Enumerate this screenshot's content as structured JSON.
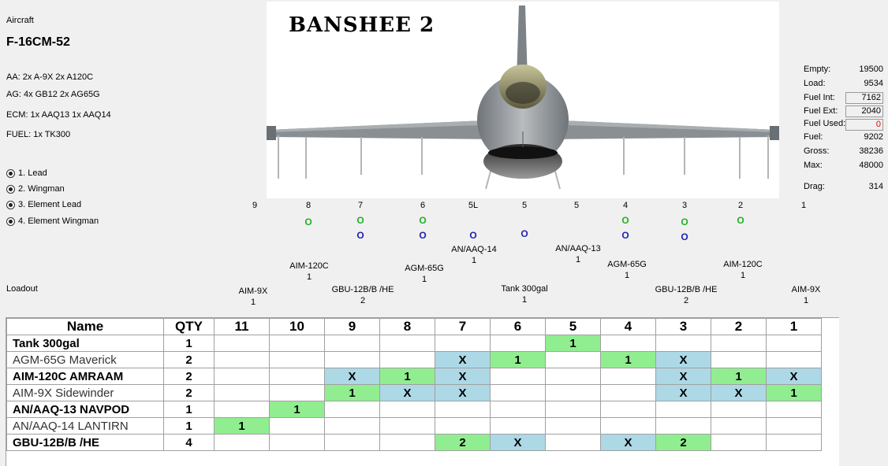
{
  "aircraft": {
    "caption": "Aircraft",
    "name": "F-16CM-52",
    "callsign": "BANSHEE 2"
  },
  "loadout_summary": {
    "aa": "AA: 2x A-9X 2x A120C",
    "ag": "AG: 4x GB12 2x AG65G",
    "ecm": "ECM: 1x AAQ13 1x AAQ14",
    "fuel": "FUEL: 1x TK300"
  },
  "roles": [
    {
      "label": "1. Lead",
      "selected": true
    },
    {
      "label": "2. Wingman",
      "selected": true
    },
    {
      "label": "3. Element Lead",
      "selected": true
    },
    {
      "label": "4. Element Wingman",
      "selected": true
    }
  ],
  "stats": {
    "empty_label": "Empty:",
    "empty": "19500",
    "load_label": "Load:",
    "load": "9534",
    "fuel_int_label": "Fuel Int:",
    "fuel_int": "7162",
    "fuel_ext_label": "Fuel Ext:",
    "fuel_ext": "2040",
    "fuel_used_label": "Fuel Used:",
    "fuel_used": "0",
    "fuel_label": "Fuel:",
    "fuel": "9202",
    "gross_label": "Gross:",
    "gross": "38236",
    "max_label": "Max:",
    "max": "48000",
    "drag_label": "Drag:",
    "drag": "314"
  },
  "stations": [
    "9",
    "8",
    "7",
    "6",
    "5L",
    "5",
    "5",
    "4",
    "3",
    "2",
    "1"
  ],
  "markers": {
    "green": "O",
    "blue": "O"
  },
  "loadout_caption": "Loadout",
  "loadout_labels": [
    {
      "name": "AIM-120C",
      "qty": "1"
    },
    {
      "name": "AGM-65G",
      "qty": "1"
    },
    {
      "name": "AN/AAQ-14",
      "qty": "1"
    },
    {
      "name": "AN/AAQ-13",
      "qty": "1"
    },
    {
      "name": "AGM-65G",
      "qty": "1"
    },
    {
      "name": "AIM-120C",
      "qty": "1"
    },
    {
      "name": "AIM-9X",
      "qty": "1"
    },
    {
      "name": "GBU-12B/B /HE",
      "qty": "2"
    },
    {
      "name": "Tank 300gal",
      "qty": "1"
    },
    {
      "name": "GBU-12B/B /HE",
      "qty": "2"
    },
    {
      "name": "AIM-9X",
      "qty": "1"
    }
  ],
  "table": {
    "headers": [
      "Name",
      "QTY",
      "11",
      "10",
      "9",
      "8",
      "7",
      "6",
      "5",
      "4",
      "3",
      "2",
      "1"
    ],
    "rows": [
      {
        "name": "Tank 300gal",
        "qty": "1",
        "cells": [
          "",
          "",
          "",
          "",
          "",
          "",
          "1",
          "",
          "",
          "",
          ""
        ]
      },
      {
        "name": "AGM-65G Maverick",
        "qty": "2",
        "cells": [
          "",
          "",
          "",
          "",
          "X",
          "1",
          "",
          "1",
          "X",
          "",
          ""
        ]
      },
      {
        "name": "AIM-120C AMRAAM",
        "qty": "2",
        "cells": [
          "",
          "",
          "X",
          "1",
          "X",
          "",
          "",
          "",
          "X",
          "1",
          "X"
        ]
      },
      {
        "name": "AIM-9X Sidewinder",
        "qty": "2",
        "cells": [
          "",
          "",
          "1",
          "X",
          "X",
          "",
          "",
          "",
          "X",
          "X",
          "1"
        ]
      },
      {
        "name": "AN/AAQ-13 NAVPOD",
        "qty": "1",
        "cells": [
          "",
          "1",
          "",
          "",
          "",
          "",
          "",
          "",
          "",
          "",
          ""
        ]
      },
      {
        "name": "AN/AAQ-14 LANTIRN",
        "qty": "1",
        "cells": [
          "1",
          "",
          "",
          "",
          "",
          "",
          "",
          "",
          "",
          "",
          ""
        ]
      },
      {
        "name": "GBU-12B/B /HE",
        "qty": "4",
        "cells": [
          "",
          "",
          "",
          "",
          "2",
          "X",
          "",
          "X",
          "2",
          "",
          ""
        ]
      }
    ]
  },
  "colors": {
    "selected": "#90ee90",
    "available": "#add8e6",
    "marker_green": "#22b022",
    "marker_blue": "#1f1fb0",
    "fuel_used": "#e00000"
  }
}
